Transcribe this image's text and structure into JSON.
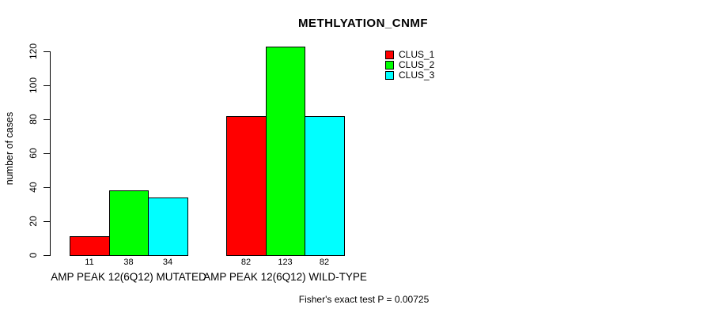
{
  "chart_data": {
    "type": "bar",
    "title": "METHLYATION_CNMF",
    "xlabel": "",
    "ylabel": "number of cases",
    "ylim": [
      0,
      120
    ],
    "yticks": [
      0,
      20,
      40,
      60,
      80,
      100,
      120
    ],
    "categories": [
      "AMP PEAK 12(6Q12) MUTATED",
      "AMP PEAK 12(6Q12) WILD-TYPE"
    ],
    "series": [
      {
        "name": "CLUS_1",
        "color": "#ff0000",
        "values": [
          11,
          82
        ]
      },
      {
        "name": "CLUS_2",
        "color": "#00ff00",
        "values": [
          38,
          123
        ]
      },
      {
        "name": "CLUS_3",
        "color": "#00ffff",
        "values": [
          34,
          82
        ]
      }
    ],
    "legend_position": "top-right",
    "grid": false,
    "bar_value_labels_shown": true
  },
  "footer": {
    "text": "Fisher's exact test P = 0.00725"
  }
}
